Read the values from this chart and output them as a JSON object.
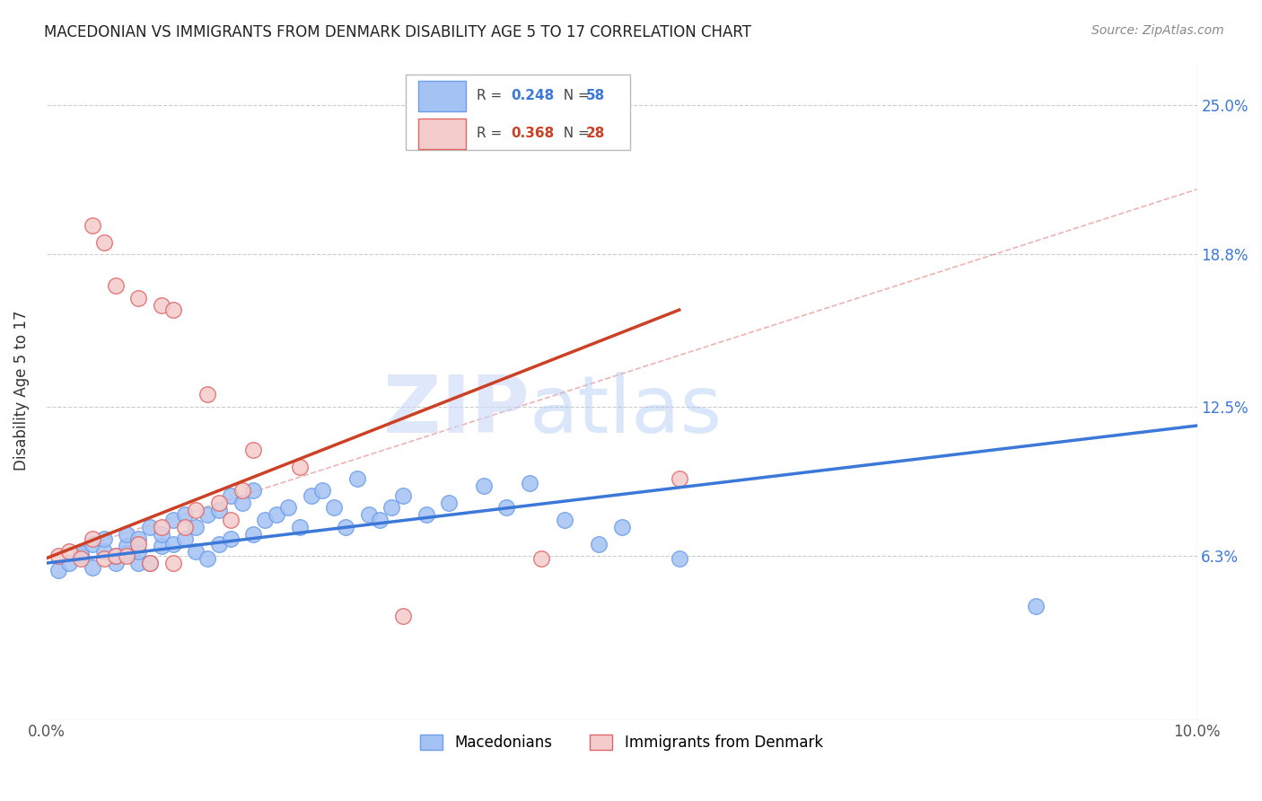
{
  "title": "MACEDONIAN VS IMMIGRANTS FROM DENMARK DISABILITY AGE 5 TO 17 CORRELATION CHART",
  "source": "Source: ZipAtlas.com",
  "ylabel": "Disability Age 5 to 17",
  "ytick_labels": [
    "6.3%",
    "12.5%",
    "18.8%",
    "25.0%"
  ],
  "ytick_values": [
    0.063,
    0.125,
    0.188,
    0.25
  ],
  "xlim": [
    0.0,
    0.1
  ],
  "ylim": [
    -0.005,
    0.268
  ],
  "legend_r_blue": "0.248",
  "legend_n_blue": "58",
  "legend_r_pink": "0.368",
  "legend_n_pink": "28",
  "legend_label_blue": "Macedonians",
  "legend_label_pink": "Immigrants from Denmark",
  "blue_color": "#a4c2f4",
  "pink_color": "#f4cccc",
  "blue_edge_color": "#6d9eeb",
  "pink_edge_color": "#e06666",
  "blue_line_color": "#3c78d8",
  "pink_line_color": "#cc4125",
  "watermark_zip": "ZIP",
  "watermark_atlas": "atlas",
  "blue_scatter_x": [
    0.001,
    0.002,
    0.003,
    0.003,
    0.004,
    0.004,
    0.005,
    0.005,
    0.006,
    0.006,
    0.007,
    0.007,
    0.007,
    0.008,
    0.008,
    0.008,
    0.009,
    0.009,
    0.01,
    0.01,
    0.011,
    0.011,
    0.012,
    0.012,
    0.013,
    0.013,
    0.014,
    0.014,
    0.015,
    0.015,
    0.016,
    0.016,
    0.017,
    0.018,
    0.018,
    0.019,
    0.02,
    0.021,
    0.022,
    0.023,
    0.024,
    0.025,
    0.026,
    0.027,
    0.028,
    0.029,
    0.03,
    0.031,
    0.033,
    0.035,
    0.038,
    0.04,
    0.042,
    0.045,
    0.048,
    0.05,
    0.055,
    0.086
  ],
  "blue_scatter_y": [
    0.057,
    0.06,
    0.063,
    0.064,
    0.058,
    0.068,
    0.065,
    0.07,
    0.06,
    0.063,
    0.064,
    0.067,
    0.072,
    0.06,
    0.065,
    0.07,
    0.06,
    0.075,
    0.067,
    0.072,
    0.068,
    0.078,
    0.07,
    0.08,
    0.065,
    0.075,
    0.062,
    0.08,
    0.068,
    0.082,
    0.07,
    0.088,
    0.085,
    0.072,
    0.09,
    0.078,
    0.08,
    0.083,
    0.075,
    0.088,
    0.09,
    0.083,
    0.075,
    0.095,
    0.08,
    0.078,
    0.083,
    0.088,
    0.08,
    0.085,
    0.092,
    0.083,
    0.093,
    0.078,
    0.068,
    0.075,
    0.062,
    0.042
  ],
  "pink_scatter_x": [
    0.001,
    0.002,
    0.003,
    0.004,
    0.004,
    0.005,
    0.005,
    0.006,
    0.006,
    0.007,
    0.008,
    0.008,
    0.009,
    0.01,
    0.01,
    0.011,
    0.011,
    0.012,
    0.013,
    0.014,
    0.015,
    0.016,
    0.017,
    0.018,
    0.022,
    0.031,
    0.043,
    0.055
  ],
  "pink_scatter_y": [
    0.063,
    0.065,
    0.062,
    0.07,
    0.2,
    0.062,
    0.193,
    0.063,
    0.175,
    0.063,
    0.068,
    0.17,
    0.06,
    0.167,
    0.075,
    0.06,
    0.165,
    0.075,
    0.082,
    0.13,
    0.085,
    0.078,
    0.09,
    0.107,
    0.1,
    0.038,
    0.062,
    0.095
  ],
  "blue_line_x": [
    0.0,
    0.1
  ],
  "blue_line_y": [
    0.06,
    0.117
  ],
  "pink_line_x": [
    0.0,
    0.055
  ],
  "pink_line_y": [
    0.062,
    0.165
  ],
  "pink_dash_line_x": [
    0.0,
    0.1
  ],
  "pink_dash_line_y": [
    0.062,
    0.215
  ]
}
